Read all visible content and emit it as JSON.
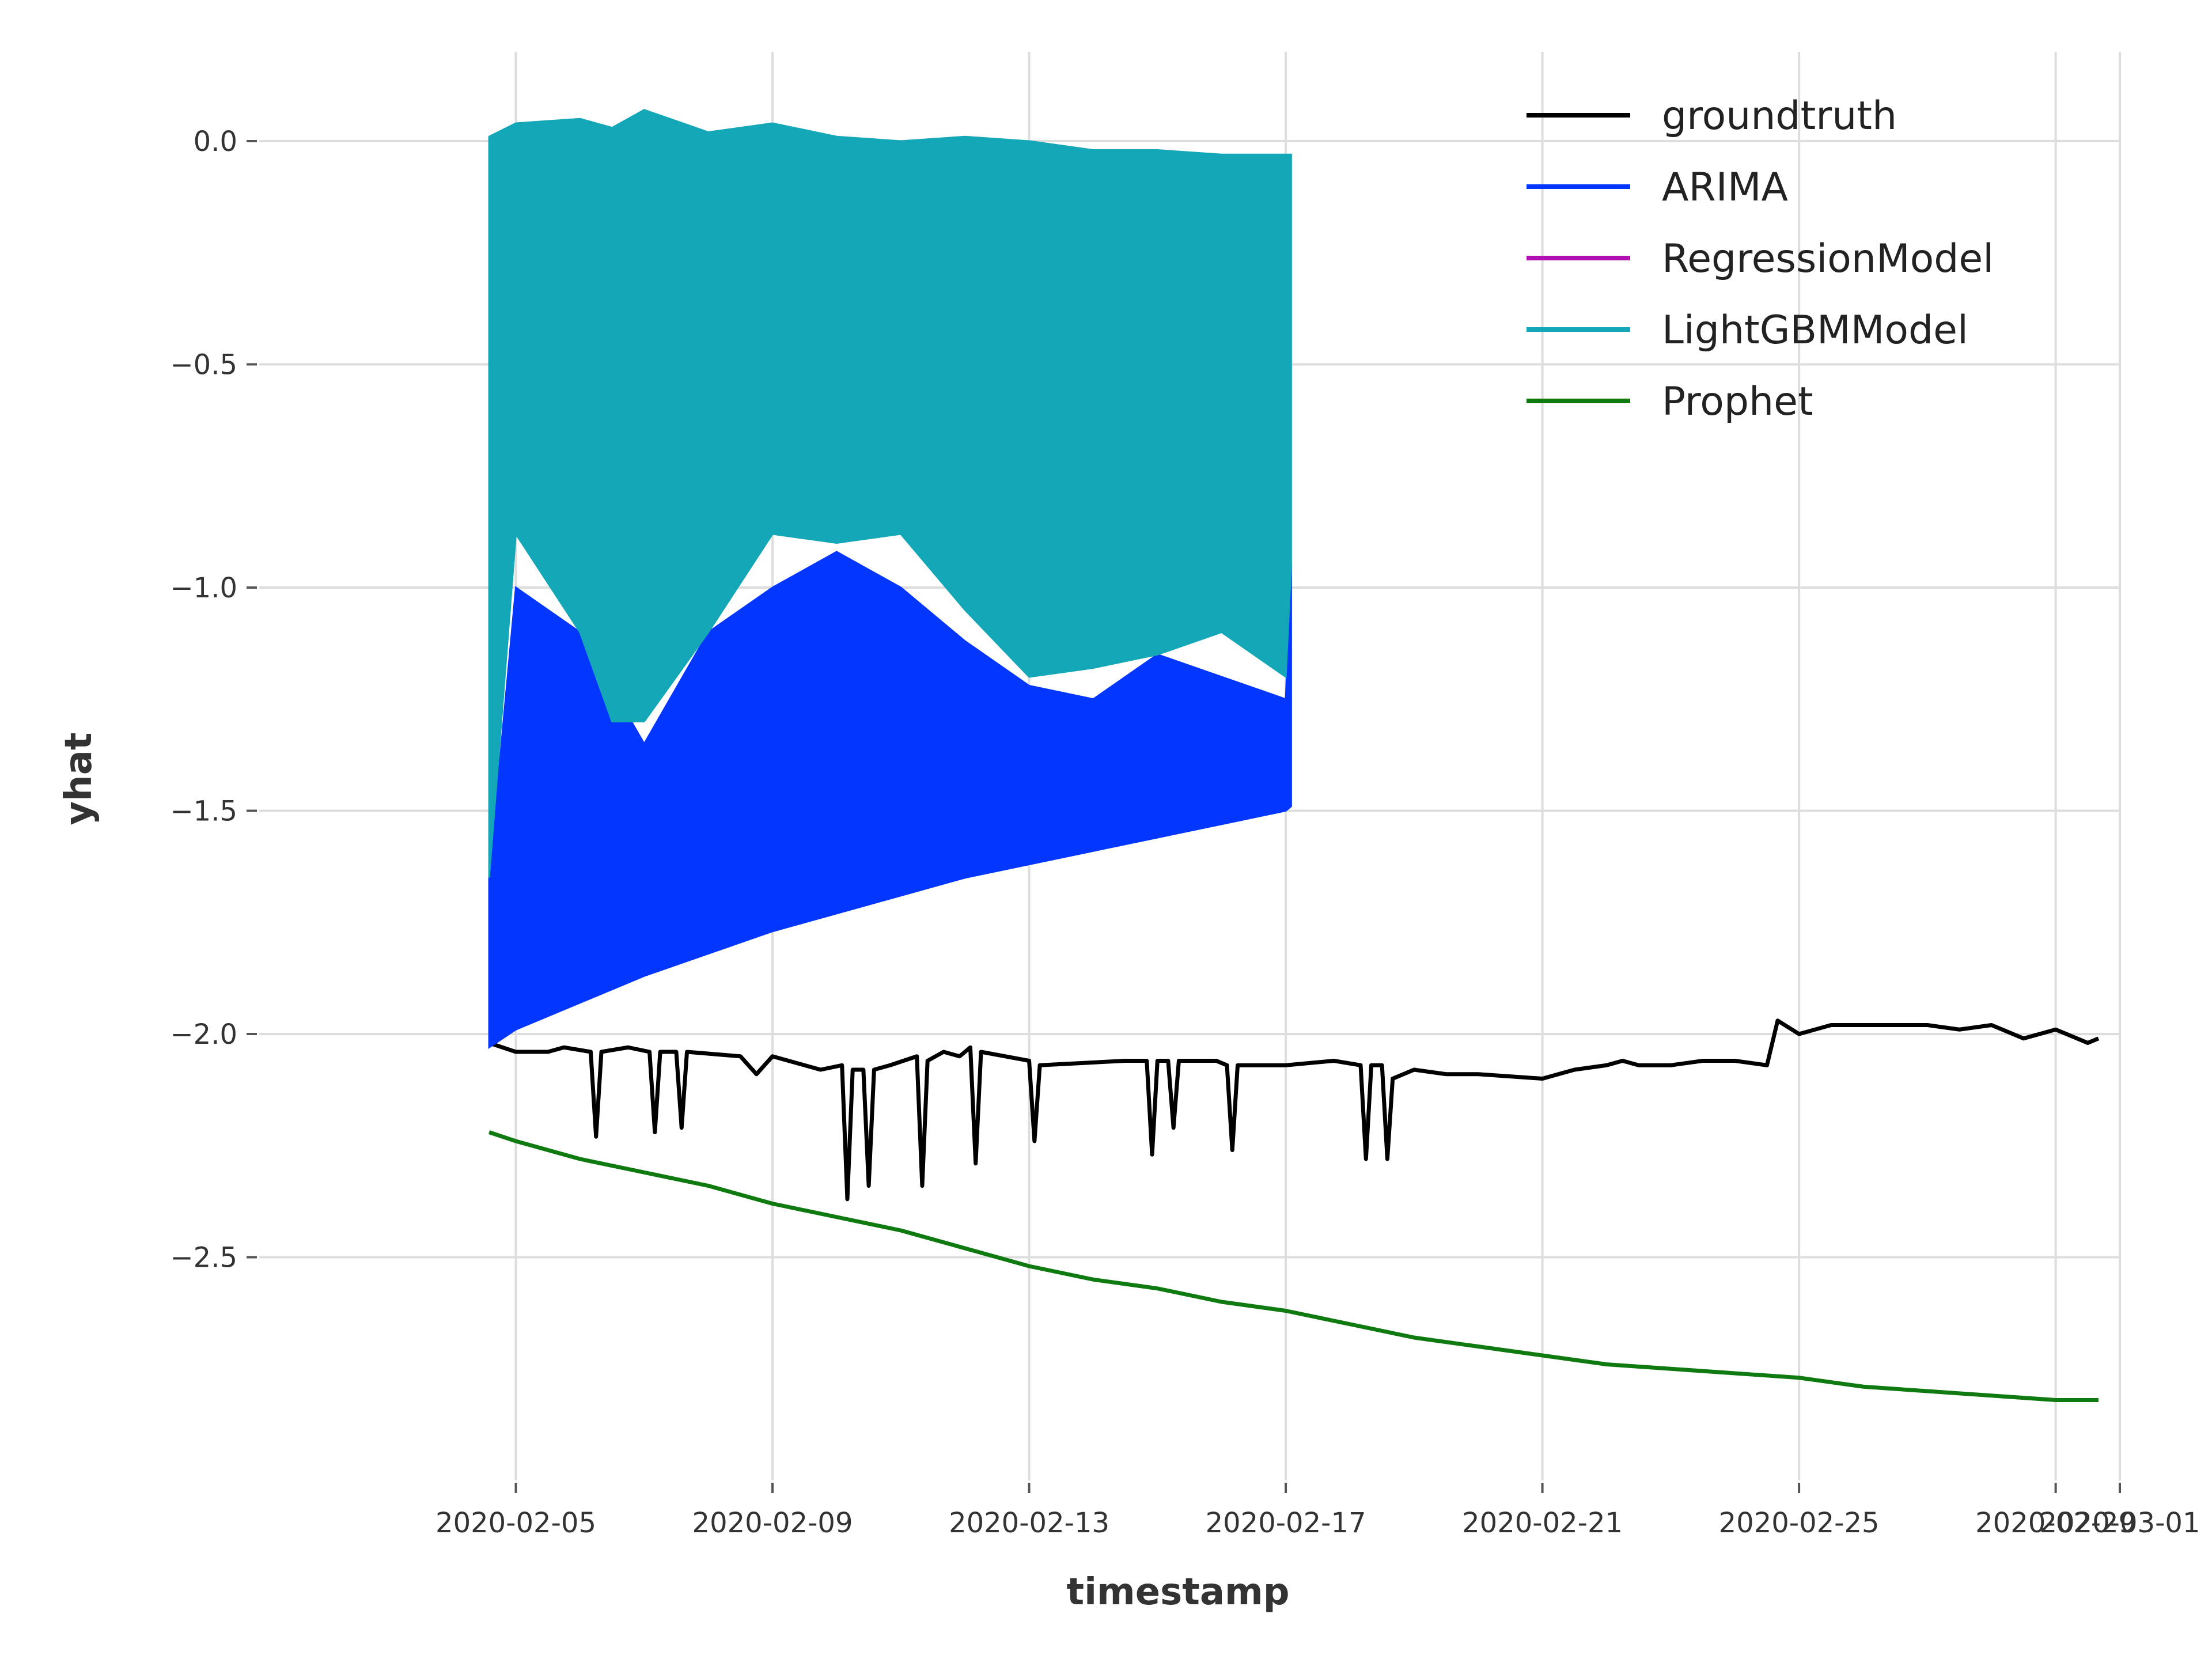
{
  "chart_data": {
    "type": "line",
    "xlabel": "timestamp",
    "ylabel": "yhat",
    "grid": true,
    "legend_placement": "top-right",
    "xlim": [
      "2020-02-01T00:00",
      "2020-03-01T00:00"
    ],
    "ylim": [
      -3.0,
      0.2
    ],
    "x_ticks": [
      {
        "date": "2020-02-05T00:00",
        "label": "2020-02-05"
      },
      {
        "date": "2020-02-09T00:00",
        "label": "2020-02-09"
      },
      {
        "date": "2020-02-13T00:00",
        "label": "2020-02-13"
      },
      {
        "date": "2020-02-17T00:00",
        "label": "2020-02-17"
      },
      {
        "date": "2020-02-21T00:00",
        "label": "2020-02-21"
      },
      {
        "date": "2020-02-25T00:00",
        "label": "2020-02-25"
      },
      {
        "date": "2020-02-29T00:00",
        "label": "2020-02-29"
      },
      {
        "date": "2020-03-01T00:00",
        "label": "2020-03-01"
      }
    ],
    "y_ticks": [
      {
        "value": 0.0,
        "label": "0.0"
      },
      {
        "value": -0.5,
        "label": "−0.5"
      },
      {
        "value": -1.0,
        "label": "−1.0"
      },
      {
        "value": -1.5,
        "label": "−1.5"
      },
      {
        "value": -2.0,
        "label": "−2.0"
      },
      {
        "value": -2.5,
        "label": "−2.5"
      }
    ],
    "series": [
      {
        "name": "groundtruth",
        "color": "#000000",
        "x": [
          "2020-02-04T14:00",
          "2020-02-05T00:00",
          "2020-02-05T12:00",
          "2020-02-05T18:00",
          "2020-02-06T04:00",
          "2020-02-06T06:00",
          "2020-02-06T08:00",
          "2020-02-06T18:00",
          "2020-02-07T02:00",
          "2020-02-07T04:00",
          "2020-02-07T06:00",
          "2020-02-07T12:00",
          "2020-02-07T14:00",
          "2020-02-07T16:00",
          "2020-02-08T12:00",
          "2020-02-08T18:00",
          "2020-02-09T00:00",
          "2020-02-09T18:00",
          "2020-02-10T02:00",
          "2020-02-10T04:00",
          "2020-02-10T06:00",
          "2020-02-10T10:00",
          "2020-02-10T12:00",
          "2020-02-10T14:00",
          "2020-02-10T20:00",
          "2020-02-11T06:00",
          "2020-02-11T08:00",
          "2020-02-11T10:00",
          "2020-02-11T16:00",
          "2020-02-11T22:00",
          "2020-02-12T02:00",
          "2020-02-12T04:00",
          "2020-02-12T06:00",
          "2020-02-13T00:00",
          "2020-02-13T02:00",
          "2020-02-13T04:00",
          "2020-02-14T12:00",
          "2020-02-14T20:00",
          "2020-02-14T22:00",
          "2020-02-15T00:00",
          "2020-02-15T04:00",
          "2020-02-15T06:00",
          "2020-02-15T08:00",
          "2020-02-15T22:00",
          "2020-02-16T02:00",
          "2020-02-16T04:00",
          "2020-02-16T06:00",
          "2020-02-17T00:00",
          "2020-02-17T18:00",
          "2020-02-18T04:00",
          "2020-02-18T06:00",
          "2020-02-18T08:00",
          "2020-02-18T12:00",
          "2020-02-18T14:00",
          "2020-02-18T16:00",
          "2020-02-19T00:00",
          "2020-02-19T12:00",
          "2020-02-20T00:00",
          "2020-02-21T00:00",
          "2020-02-21T06:00",
          "2020-02-21T12:00",
          "2020-02-22T00:00",
          "2020-02-22T06:00",
          "2020-02-22T12:00",
          "2020-02-23T00:00",
          "2020-02-23T12:00",
          "2020-02-24T00:00",
          "2020-02-24T12:00",
          "2020-02-24T16:00",
          "2020-02-25T00:00",
          "2020-02-25T12:00",
          "2020-02-26T00:00",
          "2020-02-26T12:00",
          "2020-02-27T00:00",
          "2020-02-27T12:00",
          "2020-02-28T00:00",
          "2020-02-28T12:00",
          "2020-02-29T00:00",
          "2020-02-29T12:00",
          "2020-02-29T16:00"
        ],
        "y": [
          -2.02,
          -2.04,
          -2.04,
          -2.03,
          -2.04,
          -2.23,
          -2.04,
          -2.03,
          -2.04,
          -2.22,
          -2.04,
          -2.04,
          -2.21,
          -2.04,
          -2.05,
          -2.09,
          -2.05,
          -2.08,
          -2.07,
          -2.37,
          -2.08,
          -2.08,
          -2.34,
          -2.08,
          -2.07,
          -2.05,
          -2.34,
          -2.06,
          -2.04,
          -2.05,
          -2.03,
          -2.29,
          -2.04,
          -2.06,
          -2.24,
          -2.07,
          -2.06,
          -2.06,
          -2.27,
          -2.06,
          -2.06,
          -2.21,
          -2.06,
          -2.06,
          -2.07,
          -2.26,
          -2.07,
          -2.07,
          -2.06,
          -2.07,
          -2.28,
          -2.07,
          -2.07,
          -2.28,
          -2.1,
          -2.08,
          -2.09,
          -2.09,
          -2.1,
          -2.09,
          -2.08,
          -2.07,
          -2.06,
          -2.07,
          -2.07,
          -2.06,
          -2.06,
          -2.07,
          -1.97,
          -2.0,
          -1.98,
          -1.98,
          -1.98,
          -1.98,
          -1.99,
          -1.98,
          -2.01,
          -1.99,
          -2.02,
          -2.01
        ]
      },
      {
        "name": "ARIMA",
        "color": "#0336ff",
        "x": [
          "2020-02-04T14:00",
          "2020-02-05T00:00",
          "2020-02-06T00:00",
          "2020-02-07T00:00",
          "2020-02-08T00:00",
          "2020-02-09T00:00",
          "2020-02-10T00:00",
          "2020-02-11T00:00",
          "2020-02-12T00:00",
          "2020-02-13T00:00",
          "2020-02-14T00:00",
          "2020-02-15T00:00",
          "2020-02-16T00:00",
          "2020-02-17T00:00",
          "2020-02-17T02:00"
        ],
        "y_low": [
          -2.03,
          -1.99,
          -1.93,
          -1.87,
          -1.82,
          -1.77,
          -1.73,
          -1.69,
          -1.65,
          -1.62,
          -1.59,
          -1.56,
          -1.53,
          -1.5,
          -1.49
        ],
        "y_high": [
          -1.65,
          -1.0,
          -1.1,
          -1.35,
          -1.1,
          -1.0,
          -0.92,
          -1.0,
          -1.12,
          -1.22,
          -1.25,
          -1.15,
          -1.2,
          -1.25,
          -0.95
        ]
      },
      {
        "name": "RegressionModel",
        "color": "#b20fb5",
        "x": [
          "2020-02-05T00:00",
          "2020-02-05T04:00",
          "2020-02-05T08:00",
          "2020-02-05T12:00"
        ],
        "y_low": [
          -0.02,
          -0.06,
          -0.07,
          -0.02
        ],
        "y_high": [
          0.0,
          0.0,
          0.0,
          0.0
        ]
      },
      {
        "name": "LightGBMModel",
        "color": "#13a7b7",
        "x": [
          "2020-02-04T14:00",
          "2020-02-05T00:00",
          "2020-02-06T00:00",
          "2020-02-06T12:00",
          "2020-02-07T00:00",
          "2020-02-08T00:00",
          "2020-02-09T00:00",
          "2020-02-10T00:00",
          "2020-02-11T00:00",
          "2020-02-12T00:00",
          "2020-02-13T00:00",
          "2020-02-14T00:00",
          "2020-02-15T00:00",
          "2020-02-16T00:00",
          "2020-02-17T00:00",
          "2020-02-17T02:00"
        ],
        "y_low": [
          -1.65,
          -0.88,
          -1.1,
          -1.3,
          -1.3,
          -1.1,
          -0.88,
          -0.9,
          -0.88,
          -1.05,
          -1.2,
          -1.18,
          -1.15,
          -1.1,
          -1.2,
          -0.95
        ],
        "y_high": [
          0.01,
          0.04,
          0.05,
          0.03,
          0.07,
          0.02,
          0.04,
          0.01,
          0.0,
          0.01,
          0.0,
          -0.02,
          -0.02,
          -0.03,
          -0.03,
          -0.03
        ]
      },
      {
        "name": "Prophet",
        "color": "#0f7a0f",
        "x": [
          "2020-02-04T14:00",
          "2020-02-05T00:00",
          "2020-02-06T00:00",
          "2020-02-07T00:00",
          "2020-02-08T00:00",
          "2020-02-09T00:00",
          "2020-02-10T00:00",
          "2020-02-11T00:00",
          "2020-02-12T00:00",
          "2020-02-13T00:00",
          "2020-02-14T00:00",
          "2020-02-15T00:00",
          "2020-02-16T00:00",
          "2020-02-17T00:00",
          "2020-02-18T00:00",
          "2020-02-19T00:00",
          "2020-02-20T00:00",
          "2020-02-21T00:00",
          "2020-02-22T00:00",
          "2020-02-23T00:00",
          "2020-02-24T00:00",
          "2020-02-25T00:00",
          "2020-02-26T00:00",
          "2020-02-27T00:00",
          "2020-02-28T00:00",
          "2020-02-29T00:00",
          "2020-02-29T16:00"
        ],
        "y": [
          -2.22,
          -2.24,
          -2.28,
          -2.31,
          -2.34,
          -2.38,
          -2.41,
          -2.44,
          -2.48,
          -2.52,
          -2.55,
          -2.57,
          -2.6,
          -2.62,
          -2.65,
          -2.68,
          -2.7,
          -2.72,
          -2.74,
          -2.75,
          -2.76,
          -2.77,
          -2.79,
          -2.8,
          -2.81,
          -2.82,
          -2.82
        ]
      }
    ]
  }
}
